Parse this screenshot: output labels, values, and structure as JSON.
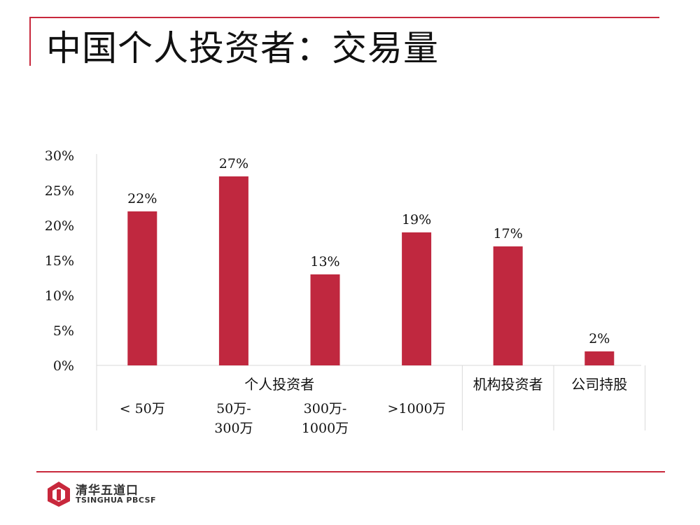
{
  "title": "中国个人投资者：交易量",
  "logo": {
    "cn": "清华五道口",
    "en": "TSINGHUA PBCSF"
  },
  "colors": {
    "accent": "#c8283c",
    "bar": "#c0283f"
  },
  "chart_data": {
    "type": "bar",
    "categories": [
      "< 50万",
      "50万-300万",
      "300万-1000万",
      ">1000万",
      "机构投资者",
      "公司持股"
    ],
    "category_label_lines": [
      [
        "< 50万"
      ],
      [
        "50万-",
        "300万"
      ],
      [
        "300万-",
        "1000万"
      ],
      [
        ">1000万"
      ],
      [],
      []
    ],
    "groups": [
      {
        "label": "个人投资者",
        "span": [
          0,
          3
        ]
      },
      {
        "label": "机构投资者",
        "span": [
          4,
          4
        ]
      },
      {
        "label": "公司持股",
        "span": [
          5,
          5
        ]
      }
    ],
    "values": [
      22,
      27,
      13,
      19,
      17,
      2
    ],
    "data_labels": [
      "22%",
      "27%",
      "13%",
      "19%",
      "17%",
      "2%"
    ],
    "y_ticks": [
      "0%",
      "5%",
      "10%",
      "15%",
      "20%",
      "25%",
      "30%"
    ],
    "ylim": [
      0,
      30
    ],
    "grid": false,
    "legend": "none"
  }
}
